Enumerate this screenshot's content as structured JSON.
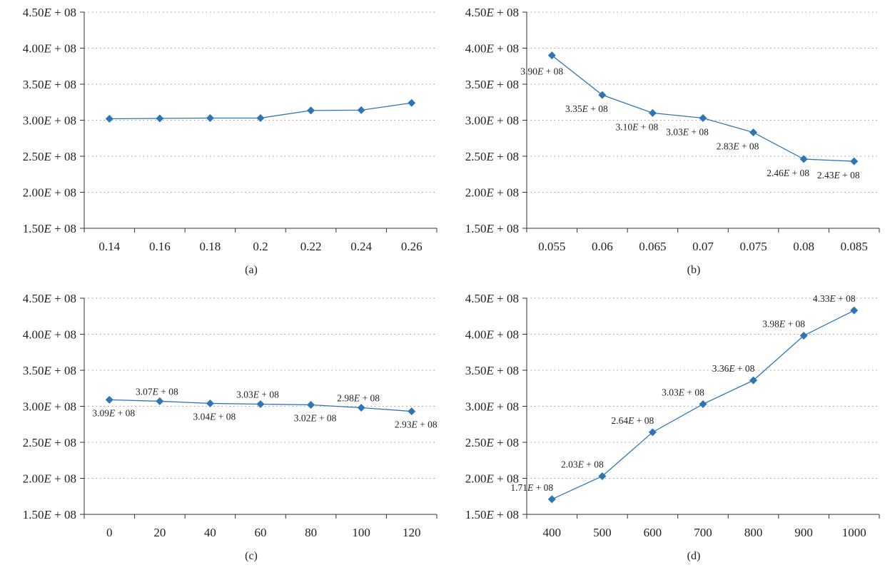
{
  "colors": {
    "series": "#2e75b6",
    "grid": "#9a9a9a",
    "axis": "#333333"
  },
  "y_tick_labels": [
    {
      "m": "1.50",
      "e": "+ 08"
    },
    {
      "m": "2.00",
      "e": "+ 08"
    },
    {
      "m": "2.50",
      "e": "+ 08"
    },
    {
      "m": "3.00",
      "e": "+ 08"
    },
    {
      "m": "3.50",
      "e": "+ 08"
    },
    {
      "m": "4.00",
      "e": "+ 08"
    },
    {
      "m": "4.50",
      "e": "+ 08"
    }
  ],
  "chart_data": [
    {
      "type": "line",
      "panel_label": "(a)",
      "x": [
        "0.14",
        "0.16",
        "0.18",
        "0.2",
        "0.22",
        "0.24",
        "0.26"
      ],
      "values": [
        302000000,
        302500000,
        303000000,
        303000000,
        313500000,
        314000000,
        324000000
      ],
      "data_labels": [],
      "ylim": [
        150000000,
        450000000
      ],
      "yticks": [
        150000000,
        200000000,
        250000000,
        300000000,
        350000000,
        400000000,
        450000000
      ],
      "grid": "horizontal-dotted",
      "marker": "diamond"
    },
    {
      "type": "line",
      "panel_label": "(b)",
      "x": [
        "0.055",
        "0.06",
        "0.065",
        "0.07",
        "0.075",
        "0.08",
        "0.085"
      ],
      "values": [
        390000000,
        335000000,
        310000000,
        303000000,
        283000000,
        246000000,
        243000000
      ],
      "data_labels": [
        {
          "m": "3.90",
          "e": "+ 08"
        },
        {
          "m": "3.35",
          "e": "+ 08"
        },
        {
          "m": "3.10",
          "e": "+ 08"
        },
        {
          "m": "3.03",
          "e": "+ 08"
        },
        {
          "m": "2.83",
          "e": "+ 08"
        },
        {
          "m": "2.46",
          "e": "+ 08"
        },
        {
          "m": "2.43",
          "e": "+ 08"
        }
      ],
      "label_position": "below",
      "ylim": [
        150000000,
        450000000
      ],
      "yticks": [
        150000000,
        200000000,
        250000000,
        300000000,
        350000000,
        400000000,
        450000000
      ],
      "grid": "horizontal-dotted",
      "marker": "diamond"
    },
    {
      "type": "line",
      "panel_label": "(c)",
      "x": [
        "0",
        "20",
        "40",
        "60",
        "80",
        "100",
        "120"
      ],
      "values": [
        309000000,
        307000000,
        304000000,
        303000000,
        302000000,
        298000000,
        293000000
      ],
      "data_labels": [
        {
          "m": "3.09",
          "e": "+ 08"
        },
        {
          "m": "3.07",
          "e": "+ 08"
        },
        {
          "m": "3.04",
          "e": "+ 08"
        },
        {
          "m": "3.03",
          "e": "+ 08"
        },
        {
          "m": "3.02",
          "e": "+ 08"
        },
        {
          "m": "2.98",
          "e": "+ 08"
        },
        {
          "m": "2.93",
          "e": "+ 08"
        }
      ],
      "label_position": "alternate",
      "ylim": [
        150000000,
        450000000
      ],
      "yticks": [
        150000000,
        200000000,
        250000000,
        300000000,
        350000000,
        400000000,
        450000000
      ],
      "grid": "horizontal-dotted",
      "marker": "diamond"
    },
    {
      "type": "line",
      "panel_label": "(d)",
      "x": [
        "400",
        "500",
        "600",
        "700",
        "800",
        "900",
        "1000"
      ],
      "values": [
        171000000,
        203000000,
        264000000,
        303000000,
        336000000,
        398000000,
        433000000
      ],
      "data_labels": [
        {
          "m": "1.71",
          "e": "+ 08"
        },
        {
          "m": "2.03",
          "e": "+ 08"
        },
        {
          "m": "2.64",
          "e": "+ 08"
        },
        {
          "m": "3.03",
          "e": "+ 08"
        },
        {
          "m": "3.36",
          "e": "+ 08"
        },
        {
          "m": "3.98",
          "e": "+ 08"
        },
        {
          "m": "4.33",
          "e": "+ 08"
        }
      ],
      "label_position": "above-left",
      "ylim": [
        150000000,
        450000000
      ],
      "yticks": [
        150000000,
        200000000,
        250000000,
        300000000,
        350000000,
        400000000,
        450000000
      ],
      "grid": "horizontal-dotted",
      "marker": "diamond"
    }
  ]
}
